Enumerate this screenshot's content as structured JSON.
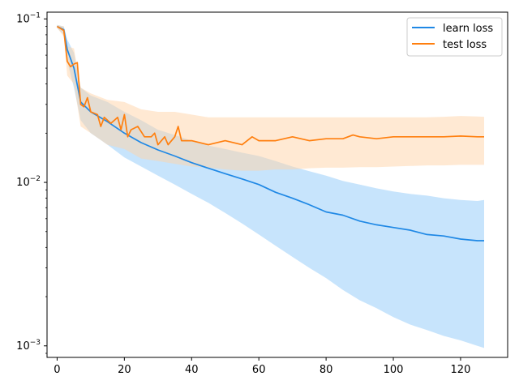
{
  "chart_data": {
    "type": "line",
    "yscale": "log",
    "xlim": [
      -3,
      134
    ],
    "ylim": [
      0.00085,
      0.11
    ],
    "xticks": [
      0,
      20,
      40,
      60,
      80,
      100,
      120
    ],
    "xtick_labels": [
      "0",
      "20",
      "40",
      "60",
      "80",
      "100",
      "120"
    ],
    "yticks": [
      0.001,
      0.01,
      0.1
    ],
    "ytick_labels": [
      "10^-3",
      "10^-2",
      "10^-1"
    ],
    "legend": "upper right",
    "grid": false,
    "series": [
      {
        "name": "learn loss",
        "color": "#1f88e5",
        "band_color": "#90caf9",
        "points": [
          [
            0,
            0.09
          ],
          [
            2,
            0.086
          ],
          [
            3,
            0.065
          ],
          [
            5,
            0.05
          ],
          [
            7,
            0.031
          ],
          [
            10,
            0.027
          ],
          [
            15,
            0.0235
          ],
          [
            20,
            0.02
          ],
          [
            25,
            0.0175
          ],
          [
            30,
            0.0158
          ],
          [
            35,
            0.0145
          ],
          [
            40,
            0.0132
          ],
          [
            45,
            0.0122
          ],
          [
            50,
            0.0113
          ],
          [
            55,
            0.0105
          ],
          [
            60,
            0.0097
          ],
          [
            65,
            0.0087
          ],
          [
            70,
            0.008
          ],
          [
            75,
            0.0073
          ],
          [
            80,
            0.0066
          ],
          [
            85,
            0.0063
          ],
          [
            90,
            0.0058
          ],
          [
            95,
            0.0055
          ],
          [
            100,
            0.0053
          ],
          [
            105,
            0.0051
          ],
          [
            110,
            0.0048
          ],
          [
            115,
            0.0047
          ],
          [
            120,
            0.0045
          ],
          [
            125,
            0.0044
          ],
          [
            127,
            0.0044
          ]
        ],
        "lower": [
          [
            0,
            0.088
          ],
          [
            2,
            0.08
          ],
          [
            3,
            0.055
          ],
          [
            5,
            0.038
          ],
          [
            7,
            0.024
          ],
          [
            10,
            0.02
          ],
          [
            15,
            0.017
          ],
          [
            20,
            0.0142
          ],
          [
            25,
            0.0125
          ],
          [
            30,
            0.011
          ],
          [
            35,
            0.0097
          ],
          [
            40,
            0.0085
          ],
          [
            45,
            0.0075
          ],
          [
            50,
            0.0065
          ],
          [
            55,
            0.0056
          ],
          [
            60,
            0.0048
          ],
          [
            65,
            0.0041
          ],
          [
            70,
            0.0035
          ],
          [
            75,
            0.003
          ],
          [
            80,
            0.0026
          ],
          [
            85,
            0.0022
          ],
          [
            90,
            0.0019
          ],
          [
            95,
            0.0017
          ],
          [
            100,
            0.0015
          ],
          [
            105,
            0.00135
          ],
          [
            110,
            0.00125
          ],
          [
            115,
            0.00115
          ],
          [
            120,
            0.00108
          ],
          [
            125,
            0.001
          ],
          [
            127,
            0.00097
          ]
        ],
        "upper": [
          [
            0,
            0.092
          ],
          [
            2,
            0.09
          ],
          [
            3,
            0.075
          ],
          [
            5,
            0.062
          ],
          [
            7,
            0.038
          ],
          [
            10,
            0.034
          ],
          [
            15,
            0.031
          ],
          [
            20,
            0.027
          ],
          [
            25,
            0.024
          ],
          [
            30,
            0.021
          ],
          [
            35,
            0.0195
          ],
          [
            40,
            0.018
          ],
          [
            45,
            0.0168
          ],
          [
            50,
            0.016
          ],
          [
            55,
            0.0152
          ],
          [
            60,
            0.0145
          ],
          [
            65,
            0.0135
          ],
          [
            70,
            0.0125
          ],
          [
            75,
            0.0117
          ],
          [
            80,
            0.011
          ],
          [
            85,
            0.0102
          ],
          [
            90,
            0.0097
          ],
          [
            95,
            0.0092
          ],
          [
            100,
            0.0088
          ],
          [
            105,
            0.0085
          ],
          [
            110,
            0.0083
          ],
          [
            115,
            0.008
          ],
          [
            120,
            0.0078
          ],
          [
            125,
            0.0077
          ],
          [
            127,
            0.0078
          ]
        ]
      },
      {
        "name": "test loss",
        "color": "#ff7f0e",
        "band_color": "#ffd4a8",
        "points": [
          [
            0,
            0.09
          ],
          [
            2,
            0.085
          ],
          [
            3,
            0.055
          ],
          [
            4,
            0.051
          ],
          [
            5,
            0.053
          ],
          [
            6,
            0.054
          ],
          [
            7,
            0.03
          ],
          [
            8,
            0.029
          ],
          [
            9,
            0.033
          ],
          [
            10,
            0.027
          ],
          [
            12,
            0.026
          ],
          [
            13,
            0.022
          ],
          [
            14,
            0.025
          ],
          [
            16,
            0.023
          ],
          [
            18,
            0.025
          ],
          [
            19,
            0.021
          ],
          [
            20,
            0.026
          ],
          [
            21,
            0.019
          ],
          [
            22,
            0.021
          ],
          [
            24,
            0.022
          ],
          [
            26,
            0.019
          ],
          [
            28,
            0.019
          ],
          [
            29,
            0.02
          ],
          [
            30,
            0.017
          ],
          [
            32,
            0.019
          ],
          [
            33,
            0.017
          ],
          [
            35,
            0.019
          ],
          [
            36,
            0.022
          ],
          [
            37,
            0.018
          ],
          [
            40,
            0.018
          ],
          [
            45,
            0.017
          ],
          [
            50,
            0.018
          ],
          [
            55,
            0.017
          ],
          [
            58,
            0.019
          ],
          [
            60,
            0.018
          ],
          [
            65,
            0.018
          ],
          [
            70,
            0.019
          ],
          [
            75,
            0.018
          ],
          [
            80,
            0.0185
          ],
          [
            85,
            0.0185
          ],
          [
            88,
            0.0195
          ],
          [
            90,
            0.019
          ],
          [
            95,
            0.0185
          ],
          [
            100,
            0.019
          ],
          [
            105,
            0.019
          ],
          [
            110,
            0.019
          ],
          [
            115,
            0.019
          ],
          [
            120,
            0.0192
          ],
          [
            125,
            0.019
          ],
          [
            127,
            0.019
          ]
        ],
        "lower": [
          [
            0,
            0.088
          ],
          [
            2,
            0.078
          ],
          [
            3,
            0.045
          ],
          [
            5,
            0.04
          ],
          [
            7,
            0.022
          ],
          [
            10,
            0.02
          ],
          [
            15,
            0.017
          ],
          [
            20,
            0.016
          ],
          [
            25,
            0.014
          ],
          [
            30,
            0.0135
          ],
          [
            35,
            0.013
          ],
          [
            40,
            0.0125
          ],
          [
            45,
            0.0123
          ],
          [
            50,
            0.012
          ],
          [
            55,
            0.0118
          ],
          [
            60,
            0.0118
          ],
          [
            65,
            0.012
          ],
          [
            70,
            0.012
          ],
          [
            75,
            0.0122
          ],
          [
            80,
            0.0123
          ],
          [
            85,
            0.0123
          ],
          [
            90,
            0.0124
          ],
          [
            95,
            0.0124
          ],
          [
            100,
            0.0125
          ],
          [
            105,
            0.0126
          ],
          [
            110,
            0.0127
          ],
          [
            115,
            0.0127
          ],
          [
            120,
            0.0128
          ],
          [
            125,
            0.0128
          ],
          [
            127,
            0.0128
          ]
        ],
        "upper": [
          [
            0,
            0.092
          ],
          [
            2,
            0.09
          ],
          [
            3,
            0.068
          ],
          [
            5,
            0.066
          ],
          [
            7,
            0.038
          ],
          [
            10,
            0.035
          ],
          [
            15,
            0.032
          ],
          [
            20,
            0.031
          ],
          [
            25,
            0.028
          ],
          [
            30,
            0.027
          ],
          [
            35,
            0.027
          ],
          [
            40,
            0.026
          ],
          [
            45,
            0.025
          ],
          [
            50,
            0.025
          ],
          [
            55,
            0.025
          ],
          [
            60,
            0.025
          ],
          [
            65,
            0.025
          ],
          [
            70,
            0.025
          ],
          [
            75,
            0.025
          ],
          [
            80,
            0.025
          ],
          [
            85,
            0.025
          ],
          [
            90,
            0.025
          ],
          [
            95,
            0.025
          ],
          [
            100,
            0.025
          ],
          [
            105,
            0.025
          ],
          [
            110,
            0.025
          ],
          [
            115,
            0.0252
          ],
          [
            120,
            0.0255
          ],
          [
            125,
            0.0253
          ],
          [
            127,
            0.0252
          ]
        ]
      }
    ]
  }
}
